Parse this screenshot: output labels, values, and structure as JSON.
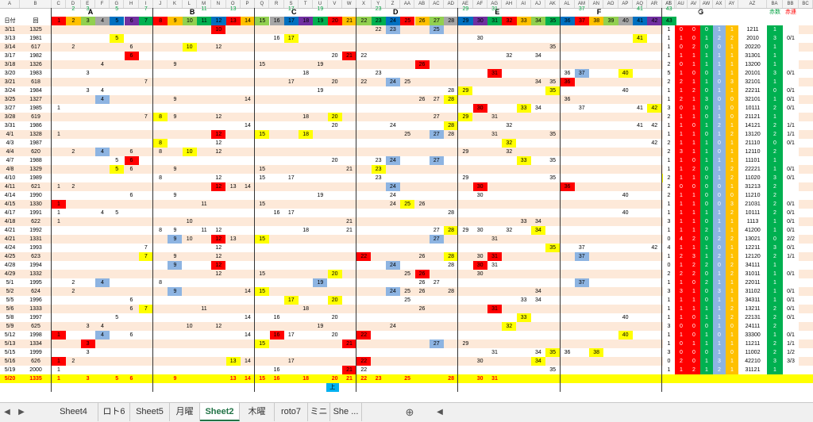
{
  "headers": {
    "col_letters": [
      "A",
      "B",
      "C",
      "D",
      "E",
      "F",
      "G",
      "H",
      "I",
      "J",
      "K",
      "L",
      "M",
      "N",
      "O",
      "P",
      "Q",
      "R",
      "S",
      "T",
      "U",
      "V",
      "W",
      "X",
      "Y",
      "Z",
      "AA",
      "AB",
      "AC",
      "AD",
      "AE",
      "AF",
      "AG",
      "AH",
      "AI",
      "AJ",
      "AK",
      "AL",
      "AM",
      "AN",
      "AO",
      "AP",
      "AQ",
      "AR",
      "AS",
      "AT",
      "AU",
      "AV",
      "AW",
      "AX",
      "AY",
      "AZ",
      "BA",
      "BB",
      "BC"
    ],
    "group_labels": [
      "A",
      "B",
      "C",
      "D",
      "E",
      "F",
      "G"
    ],
    "date_label": "日付",
    "round_label": "回",
    "right_labels": [
      "月6",
      "ミニ",
      "木6",
      "7",
      "赤数",
      "赤連"
    ],
    "top_numbers": [
      "2",
      "3",
      "5",
      "7",
      "11",
      "13",
      "17",
      "19",
      "23",
      "29",
      "31",
      "37",
      "41",
      "43"
    ],
    "header_nums": [
      "1",
      "2",
      "3",
      "4",
      "5",
      "6",
      "7",
      "8",
      "9",
      "10",
      "11",
      "12",
      "13",
      "14",
      "15",
      "16",
      "17",
      "18",
      "19",
      "20",
      "21",
      "22",
      "23",
      "24",
      "25",
      "26",
      "27",
      "28",
      "29",
      "30",
      "31",
      "32",
      "33",
      "34",
      "35",
      "36",
      "37",
      "38",
      "39",
      "40",
      "41",
      "42",
      "43"
    ]
  },
  "rows": [
    {
      "date": "3/11",
      "round": "1325",
      "vals": {
        "12": "10",
        "23": "22",
        "24": "23",
        "27": "25"
      },
      "right": [
        "1",
        "0",
        "0",
        "0",
        "1",
        "1",
        "1211",
        "1",
        ""
      ]
    },
    {
      "date": "3/13",
      "round": "1981",
      "vals": {
        "5": "5",
        "16": "16",
        "17": "17",
        "30": "30",
        "41": "41"
      },
      "right": [
        "1",
        "1",
        "0",
        "1",
        "2",
        "2",
        "2010",
        "3",
        "0/1"
      ]
    },
    {
      "date": "3/14",
      "round": "617",
      "vals": {
        "2": "2",
        "6": "6",
        "10": "10",
        "12": "12",
        "35": "35"
      },
      "right": [
        "1",
        "0",
        "2",
        "0",
        "0",
        "1",
        "20220",
        "1",
        ""
      ]
    },
    {
      "date": "3/17",
      "round": "1982",
      "vals": {
        "6": "6",
        "20": "20",
        "21": "21",
        "22": "22",
        "32": "32",
        "34": "34"
      },
      "right": [
        "1",
        "1",
        "1",
        "1",
        "1",
        "1",
        "31301",
        "1",
        ""
      ]
    },
    {
      "date": "3/18",
      "round": "1326",
      "vals": {
        "4": "4",
        "9": "9",
        "15": "15",
        "19": "19",
        "26": "26"
      },
      "right": [
        "2",
        "0",
        "1",
        "1",
        "1",
        "1",
        "13200",
        "1",
        ""
      ]
    },
    {
      "date": "3/20",
      "round": "1983",
      "vals": {
        "3": "3",
        "18": "18",
        "23": "23",
        "31": "31",
        "36": "36",
        "37": "37",
        "40": "40"
      },
      "right": [
        "5",
        "1",
        "0",
        "0",
        "1",
        "1",
        "20101",
        "3",
        "0/1"
      ]
    },
    {
      "date": "3/21",
      "round": "618",
      "vals": {
        "7": "7",
        "17": "17",
        "20": "20",
        "22": "22",
        "24": "24",
        "25": "25",
        "34": "34",
        "35": "35",
        "36": "36"
      },
      "right": [
        "2",
        "2",
        "1",
        "1",
        "0",
        "3",
        "32101",
        "1",
        ""
      ]
    },
    {
      "date": "3/24",
      "round": "1984",
      "vals": {
        "3": "3",
        "4": "4",
        "19": "19",
        "28": "28",
        "29": "29",
        "35": "35",
        "40": "40"
      },
      "right": [
        "1",
        "1",
        "2",
        "0",
        "1",
        "1",
        "22211",
        "0",
        "0/1"
      ]
    },
    {
      "date": "3/25",
      "round": "1327",
      "vals": {
        "4": "4",
        "9": "9",
        "14": "14",
        "26": "26",
        "27": "27",
        "28": "28",
        "36": "36"
      },
      "right": [
        "1",
        "2",
        "1",
        "3",
        "0",
        "0",
        "32101",
        "1",
        "0/1"
      ]
    },
    {
      "date": "3/27",
      "round": "1985",
      "vals": {
        "1": "1",
        "30": "30",
        "33": "33",
        "34": "34",
        "37": "37",
        "41": "41",
        "42": "42"
      },
      "right": [
        "3",
        "0",
        "1",
        "0",
        "1",
        "0",
        "10111",
        "2",
        "0/1"
      ]
    },
    {
      "date": "3/28",
      "round": "619",
      "vals": {
        "7": "7",
        "8": "8",
        "9": "9",
        "12": "12",
        "18": "18",
        "20": "20",
        "27": "27",
        "29": "29",
        "31": "31"
      },
      "right": [
        "2",
        "1",
        "1",
        "0",
        "1",
        "0",
        "21121",
        "1",
        ""
      ]
    },
    {
      "date": "3/31",
      "round": "1986",
      "vals": {
        "14": "14",
        "20": "20",
        "24": "24",
        "28": "28",
        "32": "32",
        "41": "41",
        "42": "42"
      },
      "right": [
        "1",
        "1",
        "0",
        "1",
        "2",
        "1",
        "14121",
        "2",
        "1/1"
      ]
    },
    {
      "date": "4/1",
      "round": "1328",
      "vals": {
        "1": "1",
        "12": "12",
        "15": "15",
        "18": "18",
        "25": "25",
        "27": "27",
        "28": "28",
        "31": "31",
        "35": "35"
      },
      "right": [
        "1",
        "1",
        "1",
        "0",
        "1",
        "2",
        "13120",
        "2",
        "1/1"
      ]
    },
    {
      "date": "4/3",
      "round": "1987",
      "vals": {
        "8": "8",
        "12": "12",
        "32": "32",
        "42": "42"
      },
      "right": [
        "2",
        "1",
        "1",
        "1",
        "0",
        "1",
        "21110",
        "0",
        "0/1"
      ]
    },
    {
      "date": "4/4",
      "round": "620",
      "vals": {
        "2": "2",
        "4": "4",
        "6": "6",
        "8": "8",
        "10": "10",
        "12": "12",
        "29": "29",
        "32": "32"
      },
      "right": [
        "2",
        "3",
        "1",
        "1",
        "0",
        "1",
        "12110",
        "2",
        ""
      ]
    },
    {
      "date": "4/7",
      "round": "1988",
      "vals": {
        "5": "5",
        "6": "6",
        "20": "20",
        "23": "23",
        "24": "24",
        "27": "27",
        "33": "33",
        "35": "35"
      },
      "right": [
        "1",
        "1",
        "0",
        "1",
        "1",
        "1",
        "11101",
        "1",
        ""
      ]
    },
    {
      "date": "4/8",
      "round": "1329",
      "vals": {
        "5": "5",
        "6": "6",
        "9": "9",
        "15": "15",
        "21": "21",
        "23": "23"
      },
      "right": [
        "1",
        "1",
        "2",
        "0",
        "1",
        "2",
        "22221",
        "1",
        "0/1"
      ]
    },
    {
      "date": "4/10",
      "round": "1989",
      "vals": {
        "8": "8",
        "12": "12",
        "15": "15",
        "17": "17",
        "23": "23",
        "29": "29",
        "35": "35",
        "43": "43"
      },
      "right": [
        "2",
        "1",
        "1",
        "0",
        "1",
        "2",
        "11020",
        "3",
        "0/1"
      ]
    },
    {
      "date": "4/11",
      "round": "621",
      "vals": {
        "1": "1",
        "2": "2",
        "12": "12",
        "13": "13",
        "14": "14",
        "24": "24",
        "30": "30",
        "36": "36"
      },
      "right": [
        "2",
        "0",
        "0",
        "0",
        "0",
        "1",
        "31213",
        "2",
        ""
      ]
    },
    {
      "date": "4/14",
      "round": "1990",
      "vals": {
        "6": "6",
        "9": "9",
        "19": "19",
        "24": "24",
        "30": "30",
        "40": "40"
      },
      "right": [
        "2",
        "1",
        "1",
        "0",
        "0",
        "0",
        "11210",
        "2",
        ""
      ]
    },
    {
      "date": "4/15",
      "round": "1330",
      "vals": {
        "1": "1",
        "11": "11",
        "15": "15",
        "24": "24",
        "25": "25",
        "26": "26"
      },
      "right": [
        "1",
        "1",
        "1",
        "0",
        "0",
        "3",
        "21031",
        "2",
        "0/1"
      ]
    },
    {
      "date": "4/17",
      "round": "1991",
      "vals": {
        "1": "1",
        "4": "4",
        "5": "5",
        "16": "16",
        "17": "17",
        "28": "28",
        "40": "40"
      },
      "right": [
        "1",
        "1",
        "1",
        "1",
        "1",
        "2",
        "10111",
        "2",
        "0/1"
      ]
    },
    {
      "date": "4/18",
      "round": "622",
      "vals": {
        "1": "1",
        "10": "10",
        "21": "21",
        "33": "33",
        "34": "34"
      },
      "right": [
        "3",
        "1",
        "1",
        "0",
        "1",
        "1",
        "1113",
        "1",
        "0/1"
      ]
    },
    {
      "date": "4/21",
      "round": "1992",
      "vals": {
        "8": "8",
        "9": "9",
        "11": "11",
        "12": "12",
        "18": "18",
        "21": "21",
        "27": "27",
        "28": "28",
        "29": "29",
        "30": "30",
        "32": "32",
        "34": "34"
      },
      "right": [
        "1",
        "1",
        "1",
        "2",
        "1",
        "1",
        "41200",
        "1",
        "0/1"
      ]
    },
    {
      "date": "4/21",
      "round": "1331",
      "vals": {
        "9": "9",
        "10": "10",
        "12": "12",
        "13": "13",
        "15": "15",
        "27": "27",
        "31": "31"
      },
      "right": [
        "0",
        "4",
        "2",
        "0",
        "2",
        "2",
        "13021",
        "0",
        "2/2"
      ]
    },
    {
      "date": "4/24",
      "round": "1993",
      "vals": {
        "7": "7",
        "12": "12",
        "35": "35",
        "37": "37",
        "42": "42"
      },
      "right": [
        "4",
        "1",
        "1",
        "1",
        "0",
        "1",
        "12211",
        "3",
        "0/1"
      ]
    },
    {
      "date": "4/25",
      "round": "623",
      "vals": {
        "7": "7",
        "9": "9",
        "12": "12",
        "22": "22",
        "26": "26",
        "28": "28",
        "30": "30",
        "31": "31",
        "37": "37"
      },
      "right": [
        "1",
        "2",
        "3",
        "1",
        "2",
        "1",
        "12120",
        "2",
        "1/1"
      ]
    },
    {
      "date": "4/28",
      "round": "1994",
      "vals": {
        "9": "9",
        "12": "12",
        "24": "24",
        "28": "28",
        "30": "30",
        "31": "31"
      },
      "right": [
        "0",
        "1",
        "2",
        "2",
        "0",
        "2",
        "34111",
        "1",
        ""
      ]
    },
    {
      "date": "4/29",
      "round": "1332",
      "vals": {
        "12": "12",
        "15": "15",
        "20": "20",
        "25": "25",
        "26": "26",
        "30": "30"
      },
      "right": [
        "2",
        "2",
        "2",
        "0",
        "1",
        "2",
        "31011",
        "1",
        "0/1"
      ]
    },
    {
      "date": "5/1",
      "round": "1995",
      "vals": {
        "2": "2",
        "4": "4",
        "8": "8",
        "19": "19",
        "26": "26",
        "27": "27",
        "37": "37"
      },
      "right": [
        "1",
        "1",
        "0",
        "2",
        "1",
        "1",
        "22011",
        "1",
        ""
      ]
    },
    {
      "date": "5/2",
      "round": "624",
      "vals": {
        "2": "2",
        "9": "9",
        "14": "14",
        "15": "15",
        "24": "24",
        "25": "25",
        "26": "26",
        "28": "28",
        "34": "34"
      },
      "right": [
        "3",
        "3",
        "1",
        "0",
        "3",
        "1",
        "31102",
        "1",
        "0/1"
      ]
    },
    {
      "date": "5/5",
      "round": "1996",
      "vals": {
        "6": "6",
        "17": "17",
        "20": "20",
        "25": "25",
        "33": "33",
        "34": "34"
      },
      "right": [
        "1",
        "1",
        "1",
        "0",
        "1",
        "1",
        "34311",
        "1",
        "0/1"
      ]
    },
    {
      "date": "5/6",
      "round": "1333",
      "vals": {
        "6": "6",
        "7": "7",
        "11": "11",
        "18": "18",
        "26": "26",
        "31": "31"
      },
      "right": [
        "1",
        "1",
        "1",
        "1",
        "1",
        "2",
        "13211",
        "2",
        "0/1"
      ]
    },
    {
      "date": "5/8",
      "round": "1997",
      "vals": {
        "5": "5",
        "14": "14",
        "16": "16",
        "20": "20",
        "33": "33",
        "40": "40"
      },
      "right": [
        "1",
        "1",
        "0",
        "1",
        "1",
        "2",
        "22131",
        "2",
        "0/1"
      ]
    },
    {
      "date": "5/9",
      "round": "625",
      "vals": {
        "3": "3",
        "4": "4",
        "10": "10",
        "12": "12",
        "19": "19",
        "24": "24",
        "32": "32"
      },
      "right": [
        "3",
        "0",
        "0",
        "0",
        "1",
        "0",
        "24111",
        "2",
        ""
      ]
    },
    {
      "date": "5/12",
      "round": "1998",
      "vals": {
        "1": "1",
        "4": "4",
        "6": "6",
        "14": "14",
        "16": "16",
        "17": "17",
        "20": "20",
        "22": "22",
        "40": "40"
      },
      "right": [
        "1",
        "1",
        "0",
        "1",
        "0",
        "1",
        "33300",
        "1",
        "0/1"
      ]
    },
    {
      "date": "5/13",
      "round": "1334",
      "vals": {
        "3": "3",
        "15": "15",
        "21": "21",
        "27": "27",
        "29": "29"
      },
      "right": [
        "1",
        "0",
        "1",
        "1",
        "1",
        "1",
        "11211",
        "2",
        "1/1"
      ]
    },
    {
      "date": "5/15",
      "round": "1999",
      "vals": {
        "3": "3",
        "31": "31",
        "34": "34",
        "35": "35",
        "36": "36",
        "38": "38"
      },
      "right": [
        "3",
        "0",
        "0",
        "0",
        "1",
        "0",
        "11002",
        "2",
        "1/2"
      ]
    },
    {
      "date": "5/16",
      "round": "626",
      "vals": {
        "1": "1",
        "2": "2",
        "13": "13",
        "14": "14",
        "17": "17",
        "22": "22",
        "30": "30",
        "34": "34"
      },
      "right": [
        "0",
        "2",
        "0",
        "1",
        "3",
        "1",
        "42210",
        "3",
        "3/3"
      ]
    },
    {
      "date": "5/19",
      "round": "2000",
      "vals": {
        "1": "1",
        "16": "16",
        "21": "21",
        "22": "22",
        "35": "35"
      },
      "right": [
        "1",
        "1",
        "2",
        "1",
        "2",
        "1",
        "31121",
        "1",
        ""
      ]
    },
    {
      "date": "5/20",
      "round": "1335",
      "vals": {
        "1": "1",
        "3": "3",
        "5": "5",
        "6": "6",
        "9": "9",
        "13": "13",
        "14": "14",
        "15": "15",
        "16": "16",
        "18": "18",
        "20": "20",
        "21": "21",
        "22": "22",
        "23": "23",
        "25": "25",
        "28": "28",
        "30": "30",
        "31": "31"
      },
      "right": [
        "",
        "",
        "",
        "",
        "",
        "",
        "",
        "",
        ""
      ]
    }
  ],
  "extra_label": "上",
  "tabs": [
    "Sheet4",
    "ロト6",
    "Sheet5",
    "月曜",
    "Sheet2",
    "木曜",
    "roto7",
    "ミニ",
    "She ..."
  ],
  "active_tab": "Sheet2",
  "colors": {
    "red": "#ff0000",
    "yellow": "#ffff00",
    "blue": "#8db4e2",
    "green": "#00b050",
    "orange": "#ffc000",
    "peach": "#fde9d9",
    "highlight": "#ffff00"
  }
}
